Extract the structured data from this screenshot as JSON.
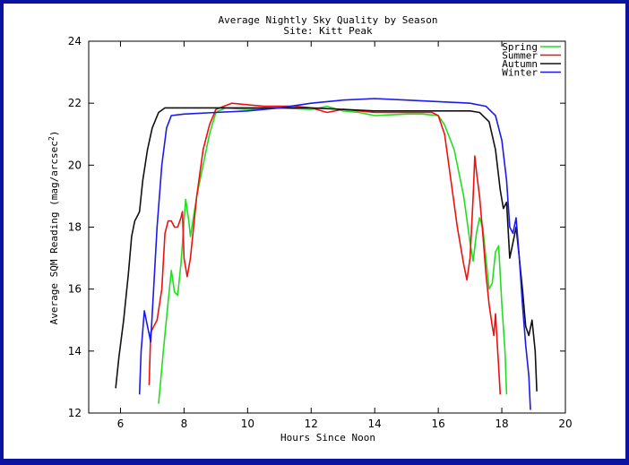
{
  "chart_data": {
    "type": "line",
    "title": "Average Nightly Sky Quality by Season",
    "subtitle": "Site: Kitt Peak",
    "xlabel": "Hours Since Noon",
    "ylabel": "Average SQM Reading (mag/arcsec²)",
    "xlim": [
      5,
      20
    ],
    "ylim": [
      12,
      24
    ],
    "xticks": [
      6,
      8,
      10,
      12,
      14,
      16,
      18,
      20
    ],
    "yticks": [
      12,
      14,
      16,
      18,
      20,
      22,
      24
    ],
    "grid": false,
    "legend_position": "top-right",
    "series": [
      {
        "name": "Spring",
        "color": "#22dd22",
        "points": [
          [
            7.2,
            12.3
          ],
          [
            7.35,
            14.0
          ],
          [
            7.5,
            15.6
          ],
          [
            7.6,
            16.6
          ],
          [
            7.7,
            15.9
          ],
          [
            7.8,
            15.8
          ],
          [
            7.9,
            16.8
          ],
          [
            8.0,
            18.2
          ],
          [
            8.05,
            18.9
          ],
          [
            8.15,
            18.2
          ],
          [
            8.2,
            17.7
          ],
          [
            8.4,
            19.0
          ],
          [
            8.6,
            20.0
          ],
          [
            8.8,
            21.0
          ],
          [
            9.0,
            21.7
          ],
          [
            9.3,
            21.85
          ],
          [
            10.0,
            21.8
          ],
          [
            11.0,
            21.85
          ],
          [
            12.0,
            21.8
          ],
          [
            12.5,
            21.9
          ],
          [
            13.0,
            21.75
          ],
          [
            13.5,
            21.7
          ],
          [
            14.0,
            21.6
          ],
          [
            15.0,
            21.65
          ],
          [
            15.5,
            21.65
          ],
          [
            16.0,
            21.6
          ],
          [
            16.2,
            21.3
          ],
          [
            16.5,
            20.5
          ],
          [
            16.8,
            19.0
          ],
          [
            17.0,
            17.5
          ],
          [
            17.1,
            16.9
          ],
          [
            17.2,
            17.8
          ],
          [
            17.3,
            18.3
          ],
          [
            17.4,
            18.0
          ],
          [
            17.5,
            17.0
          ],
          [
            17.6,
            16.0
          ],
          [
            17.7,
            16.2
          ],
          [
            17.8,
            17.2
          ],
          [
            17.9,
            17.4
          ],
          [
            18.0,
            15.5
          ],
          [
            18.1,
            14.0
          ],
          [
            18.15,
            12.6
          ]
        ]
      },
      {
        "name": "Summer",
        "color": "#ee1111",
        "points": [
          [
            6.9,
            12.9
          ],
          [
            6.95,
            14.6
          ],
          [
            7.05,
            14.8
          ],
          [
            7.15,
            15.0
          ],
          [
            7.3,
            16.0
          ],
          [
            7.4,
            17.8
          ],
          [
            7.5,
            18.2
          ],
          [
            7.6,
            18.2
          ],
          [
            7.7,
            18.0
          ],
          [
            7.8,
            18.0
          ],
          [
            7.9,
            18.3
          ],
          [
            7.95,
            18.5
          ],
          [
            8.0,
            17.0
          ],
          [
            8.1,
            16.4
          ],
          [
            8.2,
            17.0
          ],
          [
            8.4,
            19.0
          ],
          [
            8.6,
            20.5
          ],
          [
            8.8,
            21.3
          ],
          [
            9.0,
            21.8
          ],
          [
            9.5,
            22.0
          ],
          [
            10.0,
            21.95
          ],
          [
            10.5,
            21.9
          ],
          [
            11.0,
            21.9
          ],
          [
            11.5,
            21.9
          ],
          [
            12.0,
            21.85
          ],
          [
            12.5,
            21.7
          ],
          [
            13.0,
            21.8
          ],
          [
            14.0,
            21.7
          ],
          [
            15.0,
            21.7
          ],
          [
            15.8,
            21.7
          ],
          [
            16.0,
            21.6
          ],
          [
            16.2,
            21.0
          ],
          [
            16.4,
            19.5
          ],
          [
            16.6,
            18.0
          ],
          [
            16.8,
            16.8
          ],
          [
            16.9,
            16.3
          ],
          [
            17.0,
            17.0
          ],
          [
            17.1,
            19.0
          ],
          [
            17.15,
            20.3
          ],
          [
            17.2,
            19.8
          ],
          [
            17.3,
            19.0
          ],
          [
            17.4,
            17.8
          ],
          [
            17.5,
            16.5
          ],
          [
            17.6,
            15.5
          ],
          [
            17.7,
            14.8
          ],
          [
            17.75,
            14.5
          ],
          [
            17.8,
            15.2
          ],
          [
            17.9,
            13.5
          ],
          [
            17.95,
            12.6
          ]
        ]
      },
      {
        "name": "Autumn",
        "color": "#111111",
        "points": [
          [
            5.85,
            12.8
          ],
          [
            5.95,
            13.8
          ],
          [
            6.1,
            15.0
          ],
          [
            6.25,
            16.5
          ],
          [
            6.35,
            17.7
          ],
          [
            6.45,
            18.2
          ],
          [
            6.55,
            18.4
          ],
          [
            6.6,
            18.5
          ],
          [
            6.7,
            19.5
          ],
          [
            6.85,
            20.5
          ],
          [
            7.0,
            21.2
          ],
          [
            7.2,
            21.7
          ],
          [
            7.4,
            21.85
          ],
          [
            8.0,
            21.85
          ],
          [
            9.0,
            21.85
          ],
          [
            10.0,
            21.85
          ],
          [
            11.0,
            21.85
          ],
          [
            12.0,
            21.85
          ],
          [
            13.0,
            21.8
          ],
          [
            14.0,
            21.75
          ],
          [
            15.0,
            21.75
          ],
          [
            16.0,
            21.75
          ],
          [
            17.0,
            21.75
          ],
          [
            17.3,
            21.7
          ],
          [
            17.6,
            21.4
          ],
          [
            17.8,
            20.5
          ],
          [
            17.95,
            19.2
          ],
          [
            18.05,
            18.6
          ],
          [
            18.15,
            18.8
          ],
          [
            18.25,
            17.0
          ],
          [
            18.35,
            17.5
          ],
          [
            18.45,
            18.0
          ],
          [
            18.55,
            17.0
          ],
          [
            18.65,
            16.0
          ],
          [
            18.75,
            14.8
          ],
          [
            18.85,
            14.5
          ],
          [
            18.95,
            15.0
          ],
          [
            19.05,
            14.0
          ],
          [
            19.1,
            12.7
          ]
        ]
      },
      {
        "name": "Winter",
        "color": "#1a1aee",
        "points": [
          [
            6.6,
            12.6
          ],
          [
            6.65,
            14.0
          ],
          [
            6.75,
            15.3
          ],
          [
            6.85,
            14.8
          ],
          [
            6.95,
            14.3
          ],
          [
            7.0,
            15.2
          ],
          [
            7.15,
            18.0
          ],
          [
            7.3,
            20.0
          ],
          [
            7.45,
            21.2
          ],
          [
            7.6,
            21.6
          ],
          [
            8.0,
            21.65
          ],
          [
            9.0,
            21.7
          ],
          [
            10.0,
            21.75
          ],
          [
            11.0,
            21.85
          ],
          [
            12.0,
            22.0
          ],
          [
            13.0,
            22.1
          ],
          [
            14.0,
            22.15
          ],
          [
            15.0,
            22.1
          ],
          [
            16.0,
            22.05
          ],
          [
            17.0,
            22.0
          ],
          [
            17.5,
            21.9
          ],
          [
            17.8,
            21.6
          ],
          [
            18.0,
            20.8
          ],
          [
            18.15,
            19.5
          ],
          [
            18.25,
            18.0
          ],
          [
            18.35,
            17.8
          ],
          [
            18.45,
            18.3
          ],
          [
            18.55,
            17.0
          ],
          [
            18.65,
            15.5
          ],
          [
            18.75,
            14.2
          ],
          [
            18.85,
            13.2
          ],
          [
            18.9,
            12.1
          ]
        ]
      }
    ]
  }
}
